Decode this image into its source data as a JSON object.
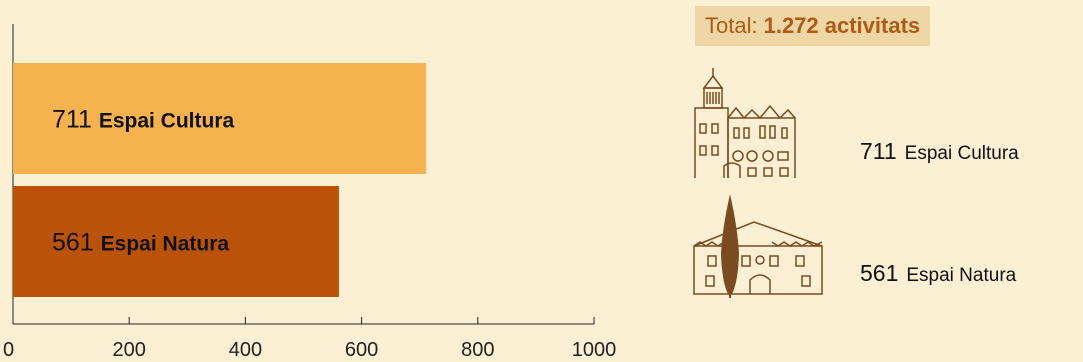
{
  "chart_data": {
    "type": "bar",
    "orientation": "horizontal",
    "categories": [
      "Espai Cultura",
      "Espai Natura"
    ],
    "values": [
      711,
      561
    ],
    "bar_colors": [
      "#f6b24e",
      "#bb520a"
    ],
    "xlim": [
      0,
      1000
    ],
    "xticks": [
      "0",
      "200",
      "400",
      "600",
      "800",
      "1000"
    ],
    "grid": false
  },
  "summary": {
    "total_prefix": "Total:",
    "total_value": "1.272 activitats"
  },
  "legend": [
    {
      "number": "711",
      "name": "Espai Cultura",
      "icon": "manor-tower-building-icon"
    },
    {
      "number": "561",
      "name": "Espai Natura",
      "icon": "farmhouse-cypress-building-icon"
    }
  ],
  "colors": {
    "background": "#fbf0d3",
    "accent_text": "#b05a18",
    "icon_stroke": "#7a4a20"
  }
}
